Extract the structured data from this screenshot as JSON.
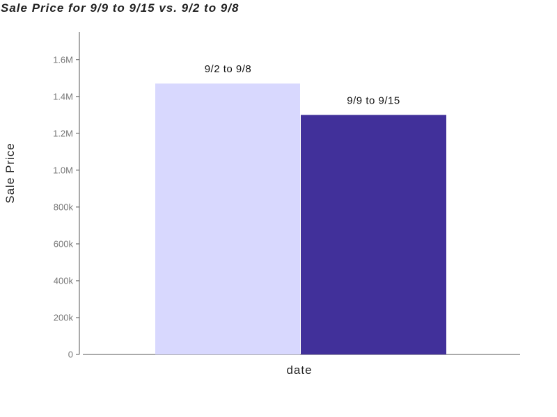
{
  "chart_data": {
    "type": "bar",
    "title": "Sale Price for 9/9 to 9/15 vs. 9/2 to 9/8",
    "xlabel": "date",
    "ylabel": "Sale Price",
    "categories": [
      "date"
    ],
    "series": [
      {
        "name": "9/2 to 9/8",
        "values": [
          1470000
        ],
        "color": "#d8d8fe"
      },
      {
        "name": "9/9 to 9/15",
        "values": [
          1300000
        ],
        "color": "#41309a"
      }
    ],
    "ylim": [
      0,
      1750000
    ],
    "yticks": [
      {
        "value": 0,
        "label": "0"
      },
      {
        "value": 200000,
        "label": "200k"
      },
      {
        "value": 400000,
        "label": "400k"
      },
      {
        "value": 600000,
        "label": "600k"
      },
      {
        "value": 800000,
        "label": "800k"
      },
      {
        "value": 1000000,
        "label": "1.0M"
      },
      {
        "value": 1200000,
        "label": "1.2M"
      },
      {
        "value": 1400000,
        "label": "1.4M"
      },
      {
        "value": 1600000,
        "label": "1.6M"
      }
    ],
    "grid": false,
    "legend": "none",
    "data_labels": "series name above each bar"
  }
}
